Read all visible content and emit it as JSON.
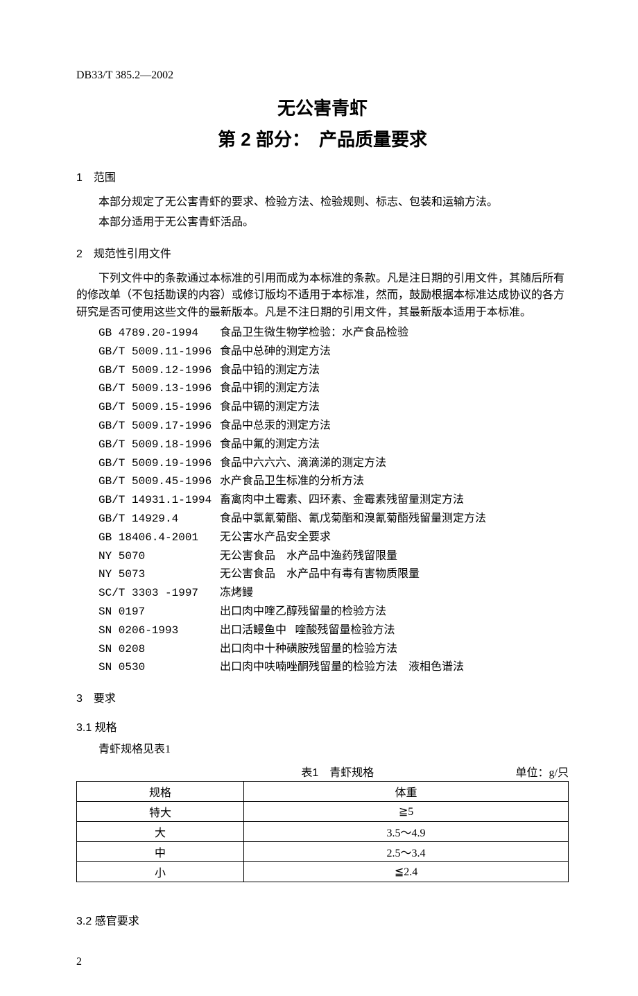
{
  "header": {
    "doc_code": "DB33/T 385.2—2002"
  },
  "title": {
    "main": "无公害青虾",
    "sub": "第 2 部分：　产品质量要求"
  },
  "section1": {
    "heading": "1　范围",
    "p1": "本部分规定了无公害青虾的要求、检验方法、检验规则、标志、包装和运输方法。",
    "p2": "本部分适用于无公害青虾活品。"
  },
  "section2": {
    "heading": "2　规范性引用文件",
    "p1": "下列文件中的条款通过本标准的引用而成为本标准的条款。凡是注日期的引用文件，其随后所有的修改单（不包括勘误的内容）或修订版均不适用于本标准，然而，鼓励根据本标准达成协议的各方研究是否可使用这些文件的最新版本。凡是不注日期的引用文件，其最新版本适用于本标准。",
    "refs": [
      {
        "code": "GB 4789.20-1994",
        "desc": "食品卫生微生物学检验：水产食品检验"
      },
      {
        "code": "GB/T 5009.11-1996",
        "desc": "食品中总砷的测定方法"
      },
      {
        "code": "GB/T 5009.12-1996",
        "desc": "食品中铅的测定方法"
      },
      {
        "code": "GB/T 5009.13-1996",
        "desc": "食品中铜的测定方法"
      },
      {
        "code": "GB/T 5009.15-1996",
        "desc": "食品中镉的测定方法"
      },
      {
        "code": "GB/T 5009.17-1996",
        "desc": "食品中总汞的测定方法"
      },
      {
        "code": "GB/T 5009.18-1996",
        "desc": "食品中氟的测定方法"
      },
      {
        "code": "GB/T 5009.19-1996",
        "desc": "食品中六六六、滴滴涕的测定方法"
      },
      {
        "code": "GB/T 5009.45-1996",
        "desc": "水产食品卫生标准的分析方法"
      },
      {
        "code": "GB/T 14931.1-1994",
        "desc": "畜禽肉中土霉素、四环素、金霉素残留量测定方法"
      },
      {
        "code": "GB/T 14929.4",
        "desc": "食品中氯氰菊酯、氰戊菊酯和溴氰菊酯残留量测定方法"
      },
      {
        "code": "GB 18406.4-2001",
        "desc": "无公害水产品安全要求"
      },
      {
        "code": "NY 5070",
        "desc": "无公害食品　水产品中渔药残留限量"
      },
      {
        "code": "NY 5073",
        "desc": "无公害食品　水产品中有毒有害物质限量"
      },
      {
        "code": "SC/T 3303 -1997",
        "desc": "冻烤鳗"
      },
      {
        "code": "SN 0197",
        "desc": "出口肉中喹乙醇残留量的检验方法"
      },
      {
        "code": "SN 0206-1993",
        "desc": "出口活鳗鱼中􀀀喹酸残留量检验方法"
      },
      {
        "code": "SN 0208",
        "desc": "出口肉中十种磺胺残留量的检验方法"
      },
      {
        "code": "SN 0530",
        "desc": "出口肉中呋喃唑酮残留量的检验方法　液相色谱法"
      }
    ]
  },
  "section3": {
    "heading": "3　要求"
  },
  "section3_1": {
    "heading": "3.1 规格",
    "p1": "青虾规格见表1",
    "table_caption": "表1　青虾规格",
    "table_unit": "单位：g/只",
    "table": {
      "header": [
        "规格",
        "体重"
      ],
      "rows": [
        [
          "特大",
          "≧5"
        ],
        [
          "大",
          "3.5～4.9"
        ],
        [
          "中",
          "2.5～3.4"
        ],
        [
          "小",
          "≦2.4"
        ]
      ]
    }
  },
  "section3_2": {
    "heading": "3.2 感官要求"
  },
  "footer": {
    "page_num": "2"
  }
}
